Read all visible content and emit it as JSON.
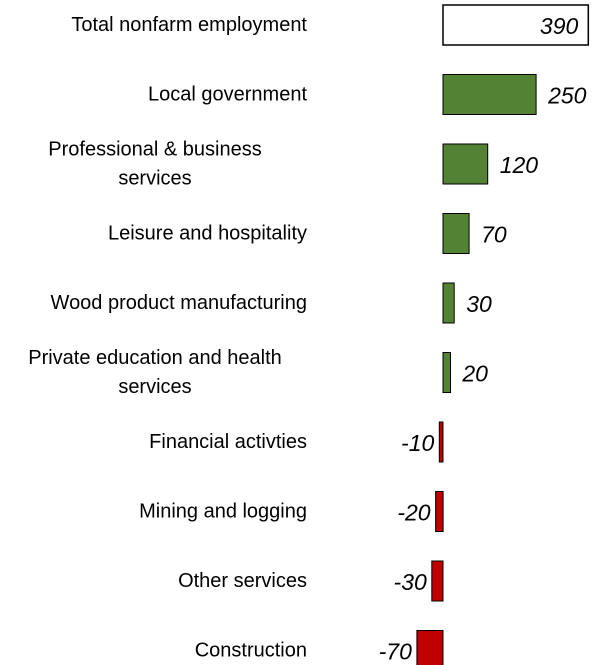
{
  "chart_data": {
    "type": "bar",
    "orientation": "horizontal",
    "categories": [
      "Total nonfarm employment",
      "Local government",
      "Professional & business services",
      "Leisure and hospitality",
      "Wood product manufacturing",
      "Private education and health services",
      "Financial activties",
      "Mining and logging",
      "Other services",
      "Construction"
    ],
    "category_lines": [
      [
        "Total nonfarm employment"
      ],
      [
        "Local government"
      ],
      [
        "Professional & business",
        "services"
      ],
      [
        "Leisure and hospitality"
      ],
      [
        "Wood product manufacturing"
      ],
      [
        "Private education and health",
        "services"
      ],
      [
        "Financial activties"
      ],
      [
        "Mining and logging"
      ],
      [
        "Other services"
      ],
      [
        "Construction"
      ]
    ],
    "values": [
      390,
      250,
      120,
      70,
      30,
      20,
      -10,
      -20,
      -30,
      -70
    ],
    "value_labels": [
      "390",
      "250",
      "120",
      "70",
      "30",
      "20",
      "-10",
      "-20",
      "-30",
      "-70"
    ],
    "total_category_index": 0,
    "colors": {
      "total_fill": "#ffffff",
      "positive": "#548235",
      "negative": "#c00000",
      "outline": "#000000"
    },
    "xlim": [
      -70,
      390
    ],
    "grid": false
  }
}
